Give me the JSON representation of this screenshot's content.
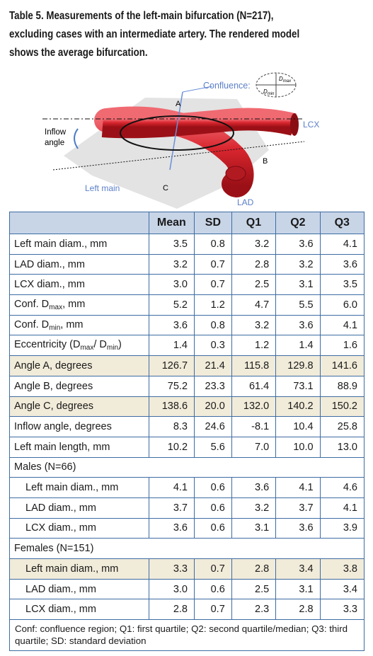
{
  "caption": {
    "lines": [
      "Table 5. Measurements of the left-main bifurcation (N=217),",
      "excluding cases with an intermediate artery. The rendered model",
      "shows the average bifurcation."
    ]
  },
  "figure": {
    "labels": {
      "confluence": "Confluence:",
      "dmax": "D",
      "dmax_sub": "max",
      "dmin": "D",
      "dmin_sub": "min",
      "a": "A",
      "b": "B",
      "c": "C",
      "lcx": "LCX",
      "lad": "LAD",
      "left_main": "Left main",
      "inflow_1": "Inflow",
      "inflow_2": "angle"
    }
  },
  "table": {
    "header": [
      "",
      "Mean",
      "SD",
      "Q1",
      "Q2",
      "Q3"
    ],
    "rows": [
      {
        "label": [
          "Left main diam., mm"
        ],
        "values": [
          "3.5",
          "0.8",
          "3.2",
          "3.6",
          "4.1"
        ]
      },
      {
        "label": [
          "LAD diam., mm"
        ],
        "values": [
          "3.2",
          "0.7",
          "2.8",
          "3.2",
          "3.6"
        ]
      },
      {
        "label": [
          "LCX diam., mm"
        ],
        "values": [
          "3.0",
          "0.7",
          "2.5",
          "3.1",
          "3.5"
        ]
      },
      {
        "label": [
          "Conf. D",
          "max",
          ", mm"
        ],
        "values": [
          "5.2",
          "1.2",
          "4.7",
          "5.5",
          "6.0"
        ]
      },
      {
        "label": [
          "Conf. D",
          "min",
          ", mm"
        ],
        "values": [
          "3.6",
          "0.8",
          "3.2",
          "3.6",
          "4.1"
        ]
      },
      {
        "label": [
          "Eccentricity (D",
          "max",
          "/ D",
          "min",
          ")"
        ],
        "values": [
          "1.4",
          "0.3",
          "1.2",
          "1.4",
          "1.6"
        ]
      },
      {
        "label": [
          "Angle A, degrees"
        ],
        "values": [
          "126.7",
          "21.4",
          "115.8",
          "129.8",
          "141.6"
        ]
      },
      {
        "label": [
          "Angle B, degrees"
        ],
        "values": [
          "75.2",
          "23.3",
          "61.4",
          "73.1",
          "88.9"
        ]
      },
      {
        "label": [
          "Angle C, degrees"
        ],
        "values": [
          "138.6",
          "20.0",
          "132.0",
          "140.2",
          "150.2"
        ]
      },
      {
        "label": [
          "Inflow angle, degrees"
        ],
        "values": [
          "8.3",
          "24.6",
          "-8.1",
          "10.4",
          "25.8"
        ]
      },
      {
        "label": [
          "Left main length, mm"
        ],
        "values": [
          "10.2",
          "5.6",
          "7.0",
          "10.0",
          "13.0"
        ]
      },
      {
        "section": "Males (N=66)"
      },
      {
        "label": [
          "Left main diam., mm"
        ],
        "values": [
          "4.1",
          "0.6",
          "3.6",
          "4.1",
          "4.6"
        ]
      },
      {
        "label": [
          "LAD diam., mm"
        ],
        "values": [
          "3.7",
          "0.6",
          "3.2",
          "3.7",
          "4.1"
        ]
      },
      {
        "label": [
          "LCX diam., mm"
        ],
        "values": [
          "3.6",
          "0.6",
          "3.1",
          "3.6",
          "3.9"
        ]
      },
      {
        "section": "Females (N=151)"
      },
      {
        "label": [
          "Left main diam., mm"
        ],
        "values": [
          "3.3",
          "0.7",
          "2.8",
          "3.4",
          "3.8"
        ]
      },
      {
        "label": [
          "LAD diam., mm"
        ],
        "values": [
          "3.0",
          "0.6",
          "2.5",
          "3.1",
          "3.4"
        ]
      },
      {
        "label": [
          "LCX diam., mm"
        ],
        "values": [
          "2.8",
          "0.7",
          "2.3",
          "2.8",
          "3.3"
        ]
      }
    ]
  },
  "footnote": "Conf: confluence region; Q1: first quartile; Q2: second quartile/median; Q3: third quartile; SD: standard deviation"
}
